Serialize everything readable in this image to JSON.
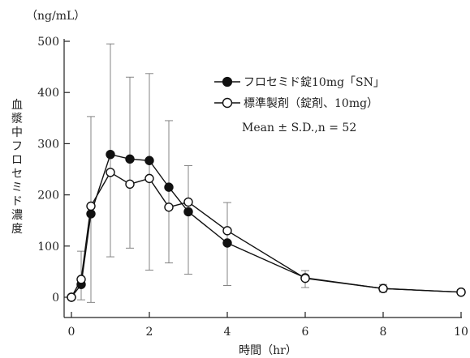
{
  "chart_data": {
    "type": "line",
    "y_unit": "（ng/mL）",
    "ylabel": "血漿中フロセミド濃度",
    "xlabel": "時間（hr）",
    "xlim": [
      0,
      10
    ],
    "ylim": [
      0,
      500
    ],
    "x_ticks": [
      0,
      2,
      4,
      6,
      8,
      10
    ],
    "y_ticks": [
      0,
      100,
      200,
      300,
      400,
      500
    ],
    "grid": false,
    "legend_position": "top-right",
    "annotation": "Mean ± S.D.,n = 52",
    "series": [
      {
        "name": "フロセミド錠10mg「SN」",
        "marker": "filled-circle",
        "color": "#111111",
        "x": [
          0,
          0.25,
          0.5,
          1,
          1.5,
          2,
          2.5,
          3,
          4,
          6,
          8,
          10
        ],
        "y": [
          0,
          25,
          163,
          279,
          270,
          267,
          215,
          167,
          106,
          38,
          17,
          10
        ],
        "sd_upper": [
          0,
          90,
          353,
          495,
          430,
          437,
          345,
          257,
          185,
          52,
          25,
          15
        ],
        "sd_lower": [
          0,
          -5,
          -10,
          79,
          96,
          53,
          67,
          45,
          23,
          19,
          10,
          6
        ]
      },
      {
        "name": "標準製剤（錠剤、10mg）",
        "marker": "open-circle",
        "color": "#111111",
        "x": [
          0,
          0.25,
          0.5,
          1,
          1.5,
          2,
          2.5,
          3,
          4,
          6,
          8,
          10
        ],
        "y": [
          0,
          35,
          178,
          244,
          221,
          232,
          176,
          186,
          130,
          37,
          17,
          10
        ],
        "sd_upper": [],
        "sd_lower": []
      }
    ]
  }
}
